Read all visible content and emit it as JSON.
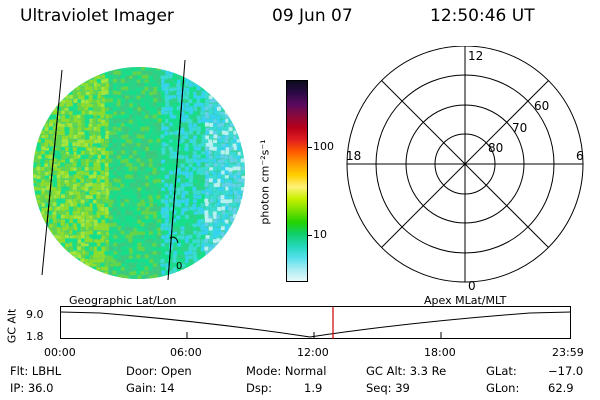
{
  "header": {
    "title": "Ultraviolet Imager",
    "date": "09 Jun 07",
    "time": "12:50:46 UT"
  },
  "colorbar": {
    "label": "photon cm⁻²s⁻¹",
    "ticks": [
      "100",
      "10"
    ],
    "colors": [
      "#0b0b1e",
      "#2a0a45",
      "#5a0a5f",
      "#8a0a3a",
      "#b8001a",
      "#e01e1e",
      "#ff5a00",
      "#ff9a00",
      "#ffd000",
      "#fff27a",
      "#c8f000",
      "#7ae000",
      "#22d200",
      "#0fcf6a",
      "#23d6b8",
      "#52e0ea",
      "#a8ecf2",
      "#e7f8fa"
    ]
  },
  "earth_image": {
    "corner_label": "0",
    "palette": [
      "#14e08c",
      "#2ad486",
      "#64d54a",
      "#8ddc2e",
      "#a6e53b",
      "#3fc87d",
      "#3adbd2",
      "#35d3f0",
      "#62d0e8",
      "#b9f0f2"
    ]
  },
  "polar_plot": {
    "mlt_labels": {
      "top": "12",
      "bottom": "0",
      "left": "18",
      "right": "6"
    },
    "lat_labels": [
      "60",
      "70",
      "80"
    ]
  },
  "orbit_panel": {
    "left_title": "Geographic Lat/Lon",
    "right_title": "Apex MLat/MLT",
    "y_axis_label": "GC Alt",
    "y_ticks": [
      "9.0",
      "1.8"
    ],
    "x_ticks": [
      "00:00",
      "06:00",
      "12:00",
      "18:00",
      "23:59"
    ],
    "marker_time": "12:50"
  },
  "info": {
    "flt": "Flt: LBHL",
    "ip": "IP: 36.0",
    "door": "Door: Open",
    "gain": "Gain: 14",
    "mode": "Mode: Normal",
    "dsp_label": "Dsp:",
    "dsp_value": "1.9",
    "gc_alt": "GC Alt: 3.3 Re",
    "seq": "Seq: 39",
    "glat_label": "GLat:",
    "glat_value": "−17.0",
    "glon_label": "GLon:",
    "glon_value": "62.9"
  }
}
